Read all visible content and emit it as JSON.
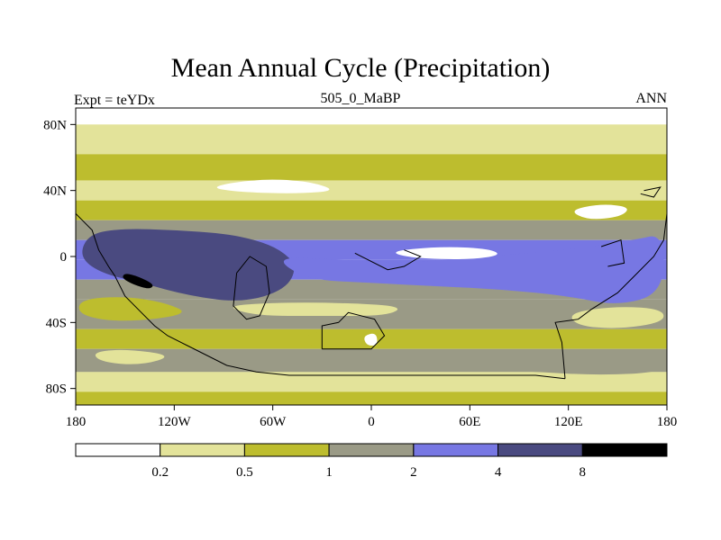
{
  "title": "Mean Annual Cycle (Precipitation)",
  "left_label": "Expt = teYDx",
  "center_label": "505_0_MaBP",
  "right_label": "ANN",
  "colors": {
    "level0": "#ffffff",
    "level1": "#e3e39a",
    "level2": "#bdbd2e",
    "level3": "#9a9a86",
    "level4": "#7777e3",
    "level5": "#4a4a80",
    "level6": "#000000",
    "coast": "#000000"
  },
  "chart_data": {
    "type": "contour-map",
    "variable": "Precipitation",
    "projection": "cylindrical-equidistant",
    "x_range": [
      -180,
      180
    ],
    "y_range": [
      -90,
      90
    ],
    "x_ticks": [
      {
        "value": -180,
        "label": "180"
      },
      {
        "value": -120,
        "label": "120W"
      },
      {
        "value": -60,
        "label": "60W"
      },
      {
        "value": 0,
        "label": "0"
      },
      {
        "value": 60,
        "label": "60E"
      },
      {
        "value": 120,
        "label": "120E"
      },
      {
        "value": 180,
        "label": "180"
      }
    ],
    "y_ticks": [
      {
        "value": 80,
        "label": "80N"
      },
      {
        "value": 40,
        "label": "40N"
      },
      {
        "value": 0,
        "label": "0"
      },
      {
        "value": -40,
        "label": "40S"
      },
      {
        "value": -80,
        "label": "80S"
      }
    ],
    "colorbar": {
      "levels": [
        0.2,
        0.5,
        1,
        2,
        4,
        8
      ],
      "labels": [
        "0.2",
        "0.5",
        "1",
        "2",
        "4",
        "8"
      ],
      "fill_keys": [
        "level0",
        "level1",
        "level2",
        "level3",
        "level4",
        "level5",
        "level6"
      ]
    },
    "zonal_bands": [
      {
        "lat": [
          80,
          90
        ],
        "class": 0
      },
      {
        "lat": [
          62,
          80
        ],
        "class": 1
      },
      {
        "lat": [
          46,
          62
        ],
        "class": 2
      },
      {
        "lat": [
          34,
          46
        ],
        "class": 1
      },
      {
        "lat": [
          22,
          34
        ],
        "class": 2
      },
      {
        "lat": [
          10,
          22
        ],
        "class": 3
      },
      {
        "lat": [
          -2,
          10
        ],
        "class": 4
      },
      {
        "lat": [
          -14,
          -2
        ],
        "class": 4
      },
      {
        "lat": [
          -26,
          -14
        ],
        "class": 3
      },
      {
        "lat": [
          -44,
          -26
        ],
        "class": 3
      },
      {
        "lat": [
          -56,
          -44
        ],
        "class": 2
      },
      {
        "lat": [
          -70,
          -56
        ],
        "class": 3
      },
      {
        "lat": [
          -82,
          -70
        ],
        "class": 1
      },
      {
        "lat": [
          -90,
          -82
        ],
        "class": 2
      }
    ],
    "features": [
      {
        "class": 5,
        "pts": [
          [
            -172,
            14
          ],
          [
            -150,
            17
          ],
          [
            -120,
            16
          ],
          [
            -90,
            14
          ],
          [
            -70,
            10
          ],
          [
            -55,
            4
          ],
          [
            -45,
            -6
          ],
          [
            -52,
            -20
          ],
          [
            -78,
            -28
          ],
          [
            -110,
            -24
          ],
          [
            -140,
            -16
          ],
          [
            -165,
            -10
          ],
          [
            -178,
            0
          ]
        ]
      },
      {
        "class": 6,
        "pts": [
          [
            -150,
            -10
          ],
          [
            -142,
            -12
          ],
          [
            -132,
            -17
          ],
          [
            -135,
            -20
          ],
          [
            -145,
            -17
          ],
          [
            -152,
            -13
          ]
        ]
      },
      {
        "class": 4,
        "pts": [
          [
            -60,
            0
          ],
          [
            -20,
            -2
          ],
          [
            20,
            -4
          ],
          [
            70,
            0
          ],
          [
            120,
            4
          ],
          [
            160,
            10
          ],
          [
            178,
            14
          ],
          [
            178,
            -22
          ],
          [
            150,
            -30
          ],
          [
            120,
            -24
          ],
          [
            80,
            -20
          ],
          [
            40,
            -18
          ],
          [
            0,
            -16
          ],
          [
            -40,
            -14
          ]
        ]
      },
      {
        "class": 0,
        "pts": [
          [
            -100,
            42
          ],
          [
            -70,
            47
          ],
          [
            -40,
            46
          ],
          [
            -20,
            40
          ],
          [
            -45,
            38
          ],
          [
            -80,
            39
          ]
        ]
      },
      {
        "class": 0,
        "pts": [
          [
            10,
            3
          ],
          [
            40,
            6
          ],
          [
            70,
            5
          ],
          [
            80,
            1
          ],
          [
            60,
            -2
          ],
          [
            25,
            -1
          ]
        ]
      },
      {
        "class": 0,
        "pts": [
          [
            120,
            28
          ],
          [
            140,
            32
          ],
          [
            158,
            30
          ],
          [
            152,
            24
          ],
          [
            132,
            22
          ]
        ]
      },
      {
        "class": 2,
        "pts": [
          [
            -178,
            -26
          ],
          [
            -150,
            -24
          ],
          [
            -125,
            -28
          ],
          [
            -110,
            -35
          ],
          [
            -150,
            -40
          ],
          [
            -178,
            -36
          ]
        ]
      },
      {
        "class": 1,
        "pts": [
          [
            -90,
            -30
          ],
          [
            -60,
            -28
          ],
          [
            -20,
            -28
          ],
          [
            20,
            -30
          ],
          [
            10,
            -36
          ],
          [
            -30,
            -36
          ],
          [
            -70,
            -36
          ]
        ]
      },
      {
        "class": 2,
        "pts": [
          [
            -40,
            -46
          ],
          [
            -5,
            -44
          ],
          [
            5,
            -50
          ],
          [
            -20,
            -56
          ],
          [
            -40,
            -54
          ]
        ]
      },
      {
        "class": 1,
        "pts": [
          [
            120,
            -34
          ],
          [
            150,
            -30
          ],
          [
            178,
            -32
          ],
          [
            178,
            -40
          ],
          [
            150,
            -44
          ],
          [
            125,
            -42
          ]
        ]
      },
      {
        "class": 0,
        "pts": [
          [
            -5,
            -48
          ],
          [
            3,
            -46
          ],
          [
            4,
            -54
          ],
          [
            -3,
            -54
          ]
        ]
      },
      {
        "class": 1,
        "pts": [
          [
            -170,
            -58
          ],
          [
            -150,
            -56
          ],
          [
            -120,
            -60
          ],
          [
            -140,
            -66
          ],
          [
            -165,
            -64
          ]
        ]
      },
      {
        "class": 3,
        "pts": [
          [
            60,
            -60
          ],
          [
            90,
            -58
          ],
          [
            120,
            -60
          ],
          [
            150,
            -58
          ],
          [
            178,
            -62
          ],
          [
            178,
            -70
          ],
          [
            140,
            -72
          ],
          [
            100,
            -70
          ],
          [
            70,
            -68
          ]
        ]
      }
    ],
    "coastlines": [
      {
        "name": "north-america",
        "pts": [
          [
            -180,
            26
          ],
          [
            -176,
            22
          ],
          [
            -170,
            16
          ],
          [
            -166,
            4
          ],
          [
            -160,
            -6
          ],
          [
            -156,
            -12
          ],
          [
            -150,
            -24
          ],
          [
            -146,
            -28
          ],
          [
            -140,
            -34
          ],
          [
            -132,
            -42
          ],
          [
            -124,
            -48
          ],
          [
            -112,
            -54
          ],
          [
            -100,
            -60
          ],
          [
            -88,
            -66
          ],
          [
            -70,
            -70
          ],
          [
            -50,
            -72
          ],
          [
            -20,
            -72
          ],
          [
            20,
            -72
          ],
          [
            60,
            -72
          ],
          [
            84,
            -72
          ],
          [
            100,
            -72
          ],
          [
            118,
            -74
          ]
        ]
      },
      {
        "name": "south-continent",
        "pts": [
          [
            -82,
            -10
          ],
          [
            -84,
            -30
          ],
          [
            -76,
            -38
          ],
          [
            -68,
            -36
          ],
          [
            -62,
            -22
          ],
          [
            -64,
            -6
          ],
          [
            -74,
            0
          ],
          [
            -82,
            -10
          ]
        ]
      },
      {
        "name": "gulf",
        "pts": [
          [
            -10,
            2
          ],
          [
            10,
            -8
          ],
          [
            20,
            -6
          ],
          [
            30,
            0
          ],
          [
            20,
            4
          ]
        ]
      },
      {
        "name": "asia-east",
        "pts": [
          [
            118,
            -74
          ],
          [
            116,
            -52
          ],
          [
            112,
            -40
          ],
          [
            126,
            -38
          ],
          [
            134,
            -32
          ],
          [
            150,
            -22
          ],
          [
            160,
            -12
          ],
          [
            172,
            0
          ],
          [
            178,
            10
          ],
          [
            180,
            26
          ]
        ]
      },
      {
        "name": "australia-like",
        "pts": [
          [
            -30,
            -56
          ],
          [
            -30,
            -42
          ],
          [
            -20,
            -40
          ],
          [
            -14,
            -34
          ],
          [
            2,
            -38
          ],
          [
            8,
            -48
          ],
          [
            0,
            -56
          ],
          [
            -30,
            -56
          ]
        ]
      },
      {
        "name": "island-ne",
        "pts": [
          [
            166,
            40
          ],
          [
            176,
            42
          ],
          [
            172,
            36
          ],
          [
            164,
            38
          ]
        ]
      },
      {
        "name": "island-e",
        "pts": [
          [
            140,
            6
          ],
          [
            152,
            10
          ],
          [
            154,
            -4
          ],
          [
            144,
            -6
          ]
        ]
      }
    ]
  }
}
